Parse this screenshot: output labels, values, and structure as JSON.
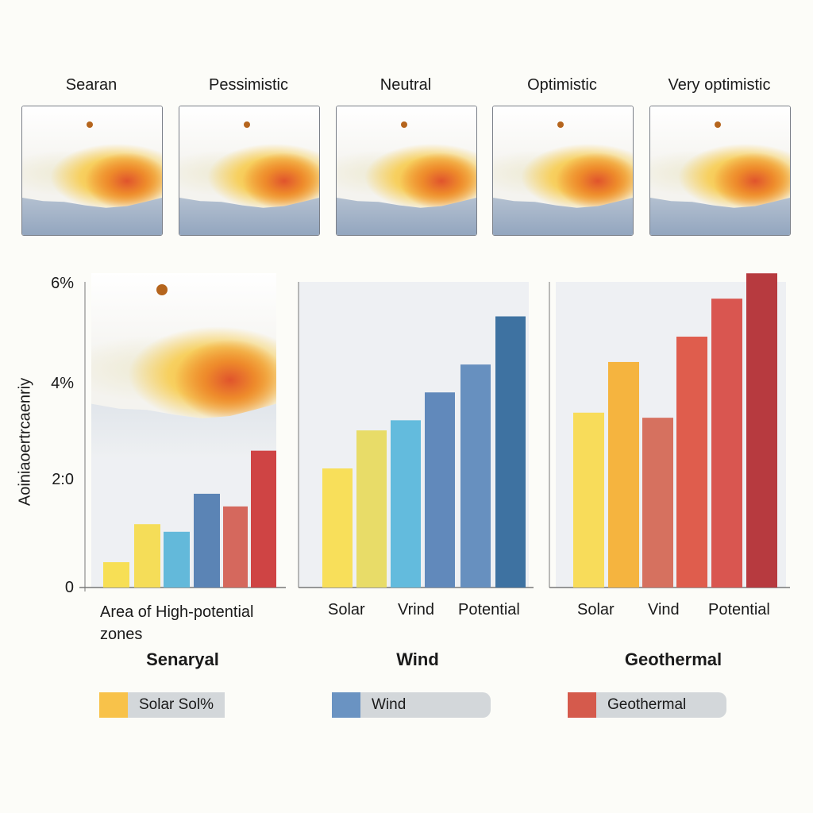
{
  "scenarios": [
    "Searan",
    "Pessimistic",
    "Neutral",
    "Optimistic",
    "Very optimistic"
  ],
  "chart_data": [
    {
      "type": "bar",
      "title": "Senaryal",
      "xlabel": "Area of High-potential zones",
      "ylabel": "Aoiniaoertrcaenriy",
      "ylim": [
        0,
        6
      ],
      "yticks": [
        "0",
        "2:0",
        "4%",
        "6%"
      ],
      "tick_labels": [],
      "values": [
        0.5,
        1.25,
        1.1,
        1.85,
        1.6,
        2.7
      ],
      "colors": [
        "#f7df55",
        "#f5dd58",
        "#63b9da",
        "#5b84b5",
        "#d5685d",
        "#cf4444"
      ]
    },
    {
      "type": "bar",
      "title": "Wind",
      "tick_labels": [
        "Solar",
        "Vrind",
        "Potential"
      ],
      "ylim": [
        0,
        6
      ],
      "values": [
        2.35,
        3.1,
        3.3,
        3.85,
        4.4,
        5.35
      ],
      "colors": [
        "#f8df5a",
        "#e8dc68",
        "#63bbdd",
        "#6189bb",
        "#6790bf",
        "#3e72a1"
      ]
    },
    {
      "type": "bar",
      "title": "Geothermal",
      "tick_labels": [
        "Solar",
        "Vind",
        "Potential"
      ],
      "ylim": [
        0,
        6
      ],
      "values": [
        3.45,
        4.45,
        3.35,
        4.95,
        5.7,
        6.2
      ],
      "colors": [
        "#f8dc5a",
        "#f5b43f",
        "#d6715f",
        "#df5d4d",
        "#d95650",
        "#b73a3f"
      ]
    }
  ],
  "legend": [
    {
      "label": "Solar Sol%",
      "color": "#f8c24a"
    },
    {
      "label": "Wind",
      "color": "#6a93c2"
    },
    {
      "label": "Geothermal",
      "color": "#d55a4c"
    }
  ]
}
